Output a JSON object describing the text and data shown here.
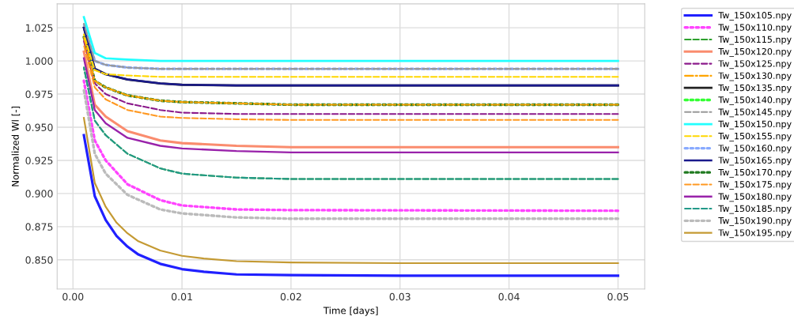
{
  "chart_data": {
    "type": "line",
    "xlabel": "Time [days]",
    "ylabel": "Normalized Wl [-]",
    "xlim": [
      -0.00145,
      0.05245
    ],
    "ylim": [
      0.828,
      1.043
    ],
    "xticks": [
      {
        "value": 0,
        "label": "0.00"
      },
      0.01,
      0.02,
      0.03,
      0.04,
      0.05
    ],
    "yticks": [
      {
        "value": 0.85,
        "label": "0.850"
      },
      {
        "value": 0.875,
        "label": "0.875"
      },
      {
        "value": 0.9,
        "label": "0.900"
      },
      {
        "value": 0.925,
        "label": "0.925"
      },
      {
        "value": 0.95,
        "label": "0.950"
      },
      {
        "value": 0.975,
        "label": "0.975"
      },
      {
        "value": 1.0,
        "label": "1.000"
      },
      {
        "value": 1.025,
        "label": "1.025"
      }
    ],
    "grid": true,
    "legend": "right",
    "marker": "none",
    "x": [
      0.001,
      0.002,
      0.003,
      0.005,
      0.008,
      0.01,
      0.015,
      0.02,
      0.05
    ],
    "series": [
      {
        "name": "Tw_150x105.npy",
        "color": "#2020ff",
        "line_style": "solid",
        "x": [
          0.001,
          0.002,
          0.003,
          0.004,
          0.005,
          0.006,
          0.008,
          0.01,
          0.012,
          0.015,
          0.02,
          0.03,
          0.05
        ],
        "values": [
          0.944,
          0.898,
          0.88,
          0.868,
          0.86,
          0.854,
          0.847,
          0.843,
          0.841,
          0.839,
          0.8385,
          0.838,
          0.838
        ]
      },
      {
        "name": "Tw_150x110.npy",
        "color": "#ff44ff",
        "line_style": "dotted",
        "values": [
          0.985,
          0.94,
          0.925,
          0.907,
          0.895,
          0.891,
          0.888,
          0.8875,
          0.887
        ]
      },
      {
        "name": "Tw_150x115.npy",
        "color": "#2ca02c",
        "line_style": "dashed",
        "values": [
          0.995,
          0.955,
          0.944,
          0.93,
          0.919,
          0.915,
          0.912,
          0.911,
          0.911
        ]
      },
      {
        "name": "Tw_150x120.npy",
        "color": "#fa8c6e",
        "line_style": "solid",
        "values": [
          1.007,
          0.967,
          0.958,
          0.947,
          0.94,
          0.938,
          0.936,
          0.935,
          0.935
        ]
      },
      {
        "name": "Tw_150x125.npy",
        "color": "#8b1a8b",
        "line_style": "dashed",
        "values": [
          1.015,
          0.983,
          0.975,
          0.968,
          0.963,
          0.961,
          0.96,
          0.96,
          0.96
        ]
      },
      {
        "name": "Tw_150x130.npy",
        "color": "#ffa500",
        "line_style": "dashdot",
        "values": [
          1.018,
          0.985,
          0.98,
          0.974,
          0.97,
          0.969,
          0.968,
          0.967,
          0.967
        ]
      },
      {
        "name": "Tw_150x135.npy",
        "color": "#222222",
        "line_style": "solid",
        "values": [
          1.025,
          0.994,
          0.99,
          0.986,
          0.983,
          0.982,
          0.9815,
          0.9815,
          0.9815
        ]
      },
      {
        "name": "Tw_150x140.npy",
        "color": "#33ff33",
        "line_style": "dotted",
        "values": [
          null,
          null,
          null,
          null,
          null,
          null,
          null,
          null,
          null
        ]
      },
      {
        "name": "Tw_150x145.npy",
        "color": "#999999",
        "line_style": "dashed",
        "values": [
          1.028,
          1.0,
          0.997,
          0.995,
          0.994,
          0.994,
          0.994,
          0.994,
          0.994
        ]
      },
      {
        "name": "Tw_150x150.npy",
        "color": "#22ffff",
        "line_style": "solid",
        "values": [
          1.033,
          1.006,
          1.002,
          1.001,
          1.0,
          1.0,
          1.0,
          1.0,
          1.0
        ]
      },
      {
        "name": "Tw_150x155.npy",
        "color": "#ffd700",
        "line_style": "dashed",
        "values": [
          1.02,
          0.993,
          0.99,
          0.989,
          0.988,
          0.988,
          0.988,
          0.988,
          0.988
        ]
      },
      {
        "name": "Tw_150x160.npy",
        "color": "#88aaff",
        "line_style": "dotted",
        "values": [
          1.028,
          1.0,
          0.997,
          0.995,
          0.994,
          0.994,
          0.994,
          0.994,
          0.994
        ]
      },
      {
        "name": "Tw_150x165.npy",
        "color": "#1a1a8c",
        "line_style": "solid",
        "values": [
          1.025,
          0.994,
          0.99,
          0.986,
          0.983,
          0.982,
          0.9815,
          0.9815,
          0.9815
        ]
      },
      {
        "name": "Tw_150x170.npy",
        "color": "#1f7a1f",
        "line_style": "dotted",
        "values": [
          1.018,
          0.985,
          0.98,
          0.974,
          0.97,
          0.969,
          0.968,
          0.967,
          0.967
        ]
      },
      {
        "name": "Tw_150x175.npy",
        "color": "#ff9922",
        "line_style": "dashed",
        "values": [
          1.012,
          0.98,
          0.971,
          0.963,
          0.958,
          0.957,
          0.956,
          0.9555,
          0.9555
        ]
      },
      {
        "name": "Tw_150x180.npy",
        "color": "#9922aa",
        "line_style": "solid",
        "values": [
          1.002,
          0.963,
          0.953,
          0.942,
          0.936,
          0.934,
          0.932,
          0.931,
          0.931
        ]
      },
      {
        "name": "Tw_150x185.npy",
        "color": "#229988",
        "line_style": "dashed",
        "values": [
          0.995,
          0.955,
          0.944,
          0.93,
          0.919,
          0.915,
          0.912,
          0.911,
          0.911
        ]
      },
      {
        "name": "Tw_150x190.npy",
        "color": "#bbbbbb",
        "line_style": "dotted",
        "values": [
          0.978,
          0.93,
          0.915,
          0.899,
          0.888,
          0.885,
          0.882,
          0.881,
          0.881
        ]
      },
      {
        "name": "Tw_150x195.npy",
        "color": "#c49a33",
        "line_style": "solid",
        "x": [
          0.001,
          0.002,
          0.003,
          0.004,
          0.005,
          0.006,
          0.008,
          0.01,
          0.012,
          0.015,
          0.02,
          0.03,
          0.05
        ],
        "values": [
          0.957,
          0.908,
          0.89,
          0.878,
          0.87,
          0.864,
          0.857,
          0.853,
          0.851,
          0.849,
          0.848,
          0.8475,
          0.8475
        ]
      }
    ]
  }
}
